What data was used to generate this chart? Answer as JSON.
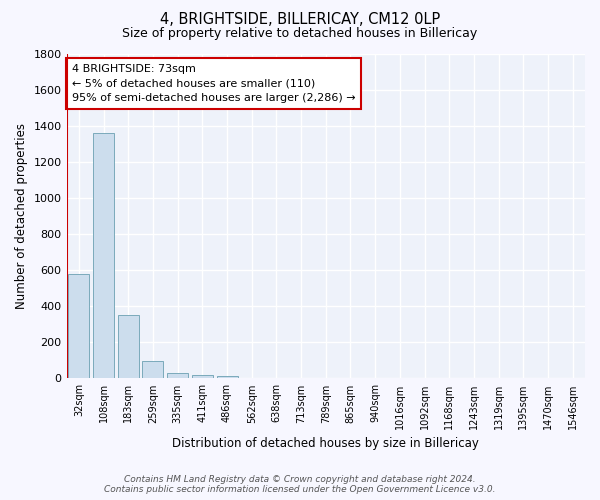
{
  "title": "4, BRIGHTSIDE, BILLERICAY, CM12 0LP",
  "subtitle": "Size of property relative to detached houses in Billericay",
  "xlabel": "Distribution of detached houses by size in Billericay",
  "ylabel": "Number of detached properties",
  "bar_color": "#ccdded",
  "bar_edge_color": "#7aaabb",
  "background_color": "#eef2fa",
  "grid_color": "#ffffff",
  "categories": [
    "32sqm",
    "108sqm",
    "183sqm",
    "259sqm",
    "335sqm",
    "411sqm",
    "486sqm",
    "562sqm",
    "638sqm",
    "713sqm",
    "789sqm",
    "865sqm",
    "940sqm",
    "1016sqm",
    "1092sqm",
    "1168sqm",
    "1243sqm",
    "1319sqm",
    "1395sqm",
    "1470sqm",
    "1546sqm"
  ],
  "values": [
    580,
    1360,
    350,
    95,
    30,
    20,
    15,
    5,
    0,
    0,
    0,
    0,
    0,
    0,
    0,
    0,
    0,
    0,
    0,
    0,
    0
  ],
  "red_line_x": 0.5,
  "annotation_line1": "4 BRIGHTSIDE: 73sqm",
  "annotation_line2": "← 5% of detached houses are smaller (110)",
  "annotation_line3": "95% of semi-detached houses are larger (2,286) →",
  "annotation_box_color": "#ffffff",
  "annotation_box_edge": "#cc0000",
  "red_line_color": "#cc0000",
  "ylim": [
    0,
    1800
  ],
  "yticks": [
    0,
    200,
    400,
    600,
    800,
    1000,
    1200,
    1400,
    1600,
    1800
  ],
  "footer_line1": "Contains HM Land Registry data © Crown copyright and database right 2024.",
  "footer_line2": "Contains public sector information licensed under the Open Government Licence v3.0."
}
